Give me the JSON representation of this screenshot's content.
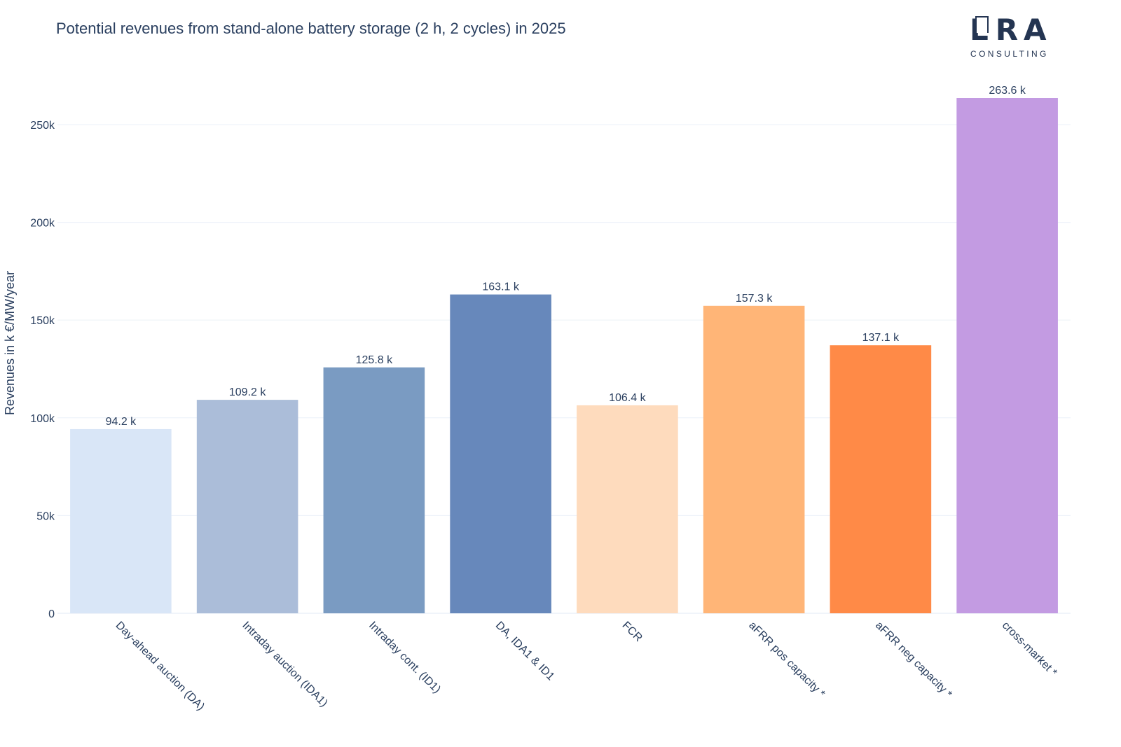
{
  "logo": {
    "word": "ERA",
    "subtitle": "CONSULTING"
  },
  "colors": {
    "text": "#2a3f5f",
    "grid": "#ebf0f8",
    "bars": [
      "#d9e6f7",
      "#abbdd9",
      "#7a9bc2",
      "#6788bb",
      "#fedbbd",
      "#ffb577",
      "#ff8a47",
      "#c39be2"
    ]
  },
  "chart_data": {
    "type": "bar",
    "title": "Potential revenues from stand-alone battery storage (2 h, 2 cycles) in 2025",
    "xlabel": "",
    "ylabel": "Revenues in k €/MW/year",
    "categories": [
      "Day-ahead auction (DA)",
      "Intraday auction (IDA1)",
      "Intraday cont. (ID1)",
      "DA, IDA1 & ID1",
      "FCR",
      "aFRR pos capacity *",
      "aFRR neg capacity *",
      "cross-market *"
    ],
    "values": [
      94200,
      109200,
      125800,
      163100,
      106400,
      157300,
      137100,
      263600
    ],
    "data_labels": [
      "94.2 k",
      "109.2 k",
      "125.8 k",
      "163.1 k",
      "106.4 k",
      "157.3 k",
      "137.1 k",
      "263.6 k"
    ],
    "ylim": [
      0,
      263600
    ],
    "yticks": [
      0,
      50000,
      100000,
      150000,
      200000,
      250000
    ],
    "ytick_labels": [
      "0",
      "50k",
      "100k",
      "150k",
      "200k",
      "250k"
    ],
    "grid": true,
    "legend": "none"
  }
}
